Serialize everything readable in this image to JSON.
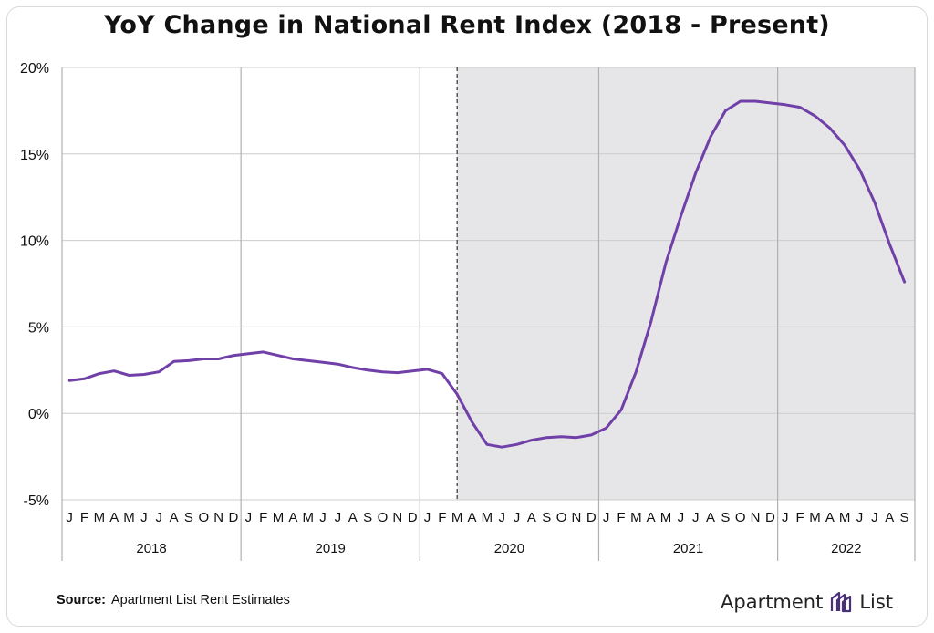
{
  "title": "YoY Change in National Rent Index (2018 - Present)",
  "source_label": "Source:",
  "source_text": "Apartment List Rent Estimates",
  "brand": {
    "left": "Apartment",
    "right": "List",
    "logo_icon": "apartment-list-logo-icon"
  },
  "colors": {
    "line": "#7040a8",
    "shade": "#e6e6e8",
    "grid": "#cccccc",
    "text": "#111111"
  },
  "chart_data": {
    "type": "line",
    "title": "YoY Change in National Rent Index (2018 - Present)",
    "xlabel": "",
    "ylabel": "",
    "ylim": [
      -5,
      20
    ],
    "yticks": [
      20,
      15,
      10,
      5,
      0,
      -5
    ],
    "ytick_labels": [
      "20%",
      "15%",
      "10%",
      "5%",
      "0%",
      "-5%"
    ],
    "grid": "horizontal and year dividers",
    "shaded_region_start": "2020-03",
    "month_letters": [
      "J",
      "F",
      "M",
      "A",
      "M",
      "J",
      "J",
      "A",
      "S",
      "O",
      "N",
      "D",
      "J",
      "F",
      "M",
      "A",
      "M",
      "J",
      "J",
      "A",
      "S",
      "O",
      "N",
      "D",
      "J",
      "F",
      "M",
      "A",
      "M",
      "J",
      "J",
      "A",
      "S",
      "O",
      "N",
      "D",
      "J",
      "F",
      "M",
      "A",
      "M",
      "J",
      "J",
      "A",
      "S",
      "O",
      "N",
      "D",
      "J",
      "F",
      "M",
      "A",
      "M",
      "J",
      "J",
      "A",
      "S"
    ],
    "years": [
      {
        "label": "2018",
        "months": 12
      },
      {
        "label": "2019",
        "months": 12
      },
      {
        "label": "2020",
        "months": 12
      },
      {
        "label": "2021",
        "months": 12
      },
      {
        "label": "2022",
        "months": 9
      }
    ],
    "series": [
      {
        "values": [
          1.9,
          2.0,
          2.3,
          2.45,
          2.2,
          2.25,
          2.4,
          3.0,
          3.05,
          3.15,
          3.15,
          3.35,
          3.45,
          3.55,
          3.35,
          3.15,
          3.05,
          2.95,
          2.85,
          2.65,
          2.5,
          2.4,
          2.35,
          2.45,
          2.55,
          2.3,
          1.1,
          -0.5,
          -1.8,
          -1.95,
          -1.8,
          -1.55,
          -1.4,
          -1.35,
          -1.4,
          -1.25,
          -0.85,
          0.2,
          2.4,
          5.3,
          8.7,
          11.4,
          13.9,
          16.0,
          17.5,
          18.05,
          18.05,
          17.95,
          17.85,
          17.7,
          17.2,
          16.5,
          15.5,
          14.1,
          12.2,
          9.8,
          7.6
        ]
      }
    ]
  }
}
